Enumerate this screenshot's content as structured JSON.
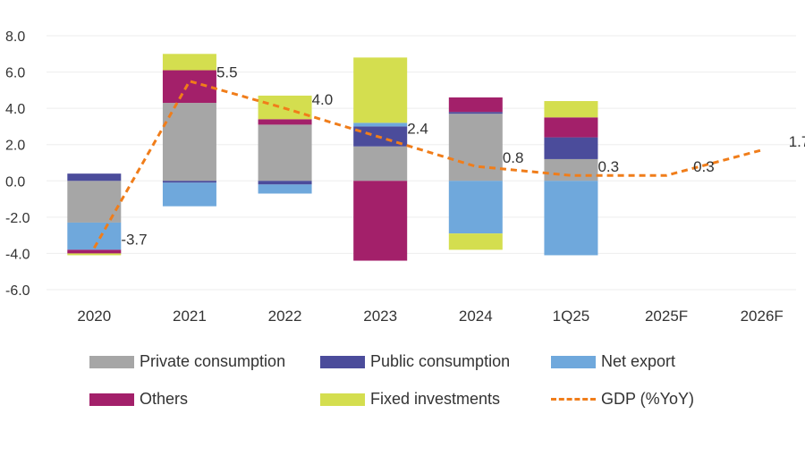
{
  "chart_data": {
    "type": "bar",
    "stacked": true,
    "categories": [
      "2020",
      "2021",
      "2022",
      "2023",
      "2024",
      "1Q25",
      "2025F",
      "2026F"
    ],
    "ylim": [
      -6,
      8
    ],
    "yticks": [
      "8.0",
      "6.0",
      "4.0",
      "2.0",
      "0.0",
      "-2.0",
      "-4.0",
      "-6.0"
    ],
    "grid": true,
    "legend_position": "bottom",
    "series": [
      {
        "name": "Private consumption",
        "color": "#A6A6A6",
        "values": [
          -2.3,
          4.3,
          3.1,
          1.9,
          3.7,
          1.2,
          null,
          null
        ]
      },
      {
        "name": "Public consumption",
        "color": "#4B4C9B",
        "values": [
          0.4,
          -0.1,
          -0.2,
          1.1,
          0.1,
          1.2,
          null,
          null
        ]
      },
      {
        "name": "Net export",
        "color": "#6FA8DC",
        "values": [
          -1.5,
          -1.3,
          -0.5,
          0.2,
          -2.9,
          -4.1,
          null,
          null
        ]
      },
      {
        "name": "Others",
        "color": "#A3206A",
        "values": [
          -0.2,
          1.8,
          0.3,
          -4.4,
          0.8,
          1.1,
          null,
          null
        ]
      },
      {
        "name": "Fixed investments",
        "color": "#D4DE4F",
        "values": [
          -0.1,
          0.9,
          1.3,
          3.6,
          -0.9,
          0.9,
          null,
          null
        ]
      }
    ],
    "line": {
      "name": "GDP (%YoY)",
      "color": "#F07D1A",
      "values": [
        -3.7,
        5.5,
        4.0,
        2.4,
        0.8,
        0.3,
        0.3,
        1.7
      ]
    },
    "data_labels": [
      "-3.7",
      "5.5",
      "4.0",
      "2.4",
      "0.8",
      "0.3",
      "0.3",
      "1.7"
    ]
  }
}
